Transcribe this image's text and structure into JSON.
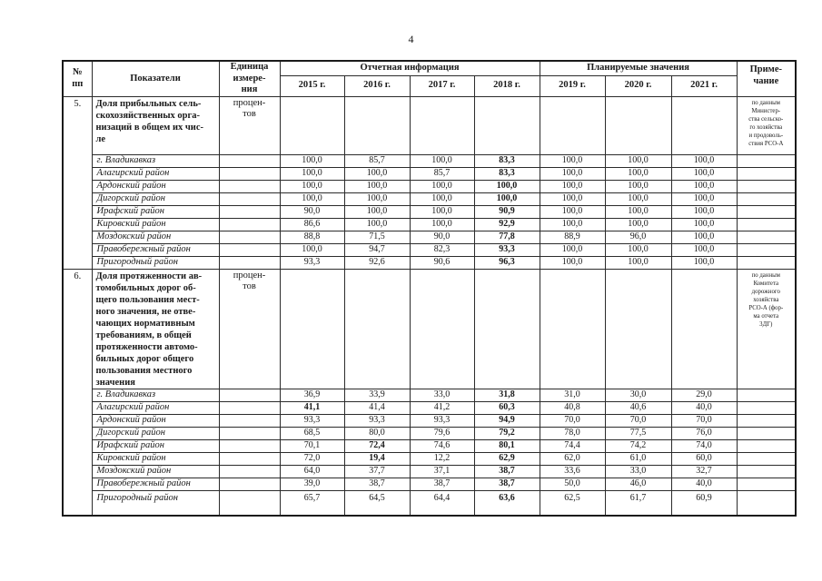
{
  "page": {
    "number": "4"
  },
  "table": {
    "bold_year_index": 3,
    "header": {
      "num": "№\nпп",
      "indicator": "Показатели",
      "unit": "Единица\nизмере-\nния",
      "report_group": "Отчетная информация",
      "plan_group": "Планируемые значения",
      "note": "Приме-\nчание",
      "report_years": [
        "2015 г.",
        "2016 г.",
        "2017 г.",
        "2018 г."
      ],
      "plan_years": [
        "2019 г.",
        "2020 г.",
        "2021 г."
      ]
    },
    "blocks": [
      {
        "num": "5.",
        "indicator": "Доля прибыльных сель-\nскохозяйственных орга-\nнизаций в  общем их чис-\nле",
        "unit": "процен-\nтов",
        "note": "по данным\nМинистер-\nства сельско-\nго хозяйства\nи продоволь-\nствия РСО-А",
        "rows": [
          {
            "name": "г. Владикавказ",
            "values": [
              "100,0",
              "85,7",
              "100,0",
              "83,3",
              "100,0",
              "100,0",
              "100,0"
            ]
          },
          {
            "name": "Алагирский район",
            "values": [
              "100,0",
              "100,0",
              "85,7",
              "83,3",
              "100,0",
              "100,0",
              "100,0"
            ]
          },
          {
            "name": "Ардонский район",
            "values": [
              "100,0",
              "100,0",
              "100,0",
              "100,0",
              "100,0",
              "100,0",
              "100,0"
            ]
          },
          {
            "name": "Дигорский район",
            "values": [
              "100,0",
              "100,0",
              "100,0",
              "100,0",
              "100,0",
              "100,0",
              "100,0"
            ]
          },
          {
            "name": "Ирафский район",
            "values": [
              "90,0",
              "100,0",
              "100,0",
              "90,9",
              "100,0",
              "100,0",
              "100,0"
            ]
          },
          {
            "name": "Кировский район",
            "values": [
              "86,6",
              "100,0",
              "100,0",
              "92,9",
              "100,0",
              "100,0",
              "100,0"
            ]
          },
          {
            "name": "Моздокский район",
            "values": [
              "88,8",
              "71,5",
              "90,0",
              "77,8",
              "88,9",
              "96,0",
              "100,0"
            ]
          },
          {
            "name": "Правобережный район",
            "values": [
              "100,0",
              "94,7",
              "82,3",
              "93,3",
              "100,0",
              "100,0",
              "100,0"
            ]
          },
          {
            "name": "Пригородный район",
            "values": [
              "93,3",
              "92,6",
              "90,6",
              "96,3",
              "100,0",
              "100,0",
              "100,0"
            ]
          }
        ]
      },
      {
        "num": "6.",
        "indicator": "Доля протяженности ав-\nтомобильных дорог об-\nщего пользования мест-\nного значения, не отве-\nчающих нормативным\nтребованиям, в общей\nпротяженности автомо-\nбильных дорог общего\nпользования местного\nзначения",
        "unit": "процен-\nтов",
        "note": "по данным\nКомитета\nдорожного\nхозяйства\nРСО-А (фор-\nма отчета\n3ДГ)",
        "rows": [
          {
            "name": "г. Владикавказ",
            "values": [
              "36,9",
              "33,9",
              "33,0",
              "31,8",
              "31,0",
              "30,0",
              "29,0"
            ]
          },
          {
            "name": "Алагирский район",
            "values": [
              "41,1",
              "41,4",
              "41,2",
              "60,3",
              "40,8",
              "40,6",
              "40,0"
            ],
            "also_bold": [
              0
            ]
          },
          {
            "name": "Ардонский район",
            "values": [
              "93,3",
              "93,3",
              "93,3",
              "94,9",
              "70,0",
              "70,0",
              "70,0"
            ]
          },
          {
            "name": "Дигорский район",
            "values": [
              "68,5",
              "80,0",
              "79,6",
              "79,2",
              "78,0",
              "77,5",
              "76,0"
            ]
          },
          {
            "name": "Ирафский район",
            "values": [
              "70,1",
              "72,4",
              "74,6",
              "80,1",
              "74,4",
              "74,2",
              "74,0"
            ],
            "also_bold": [
              1
            ]
          },
          {
            "name": "Кировский район",
            "values": [
              "72,0",
              "19,4",
              "12,2",
              "62,9",
              "62,0",
              "61,0",
              "60,0"
            ],
            "also_bold": [
              1
            ]
          },
          {
            "name": "Моздокский район",
            "values": [
              "64,0",
              "37,7",
              "37,1",
              "38,7",
              "33,6",
              "33,0",
              "32,7"
            ]
          },
          {
            "name": "Правобережный район",
            "values": [
              "39,0",
              "38,7",
              "38,7",
              "38,7",
              "50,0",
              "46,0",
              "40,0"
            ]
          },
          {
            "name": "Пригородный район",
            "values": [
              "65,7",
              "64,5",
              "64,4",
              "63,6",
              "62,5",
              "61,7",
              "60,9"
            ]
          }
        ]
      }
    ]
  }
}
